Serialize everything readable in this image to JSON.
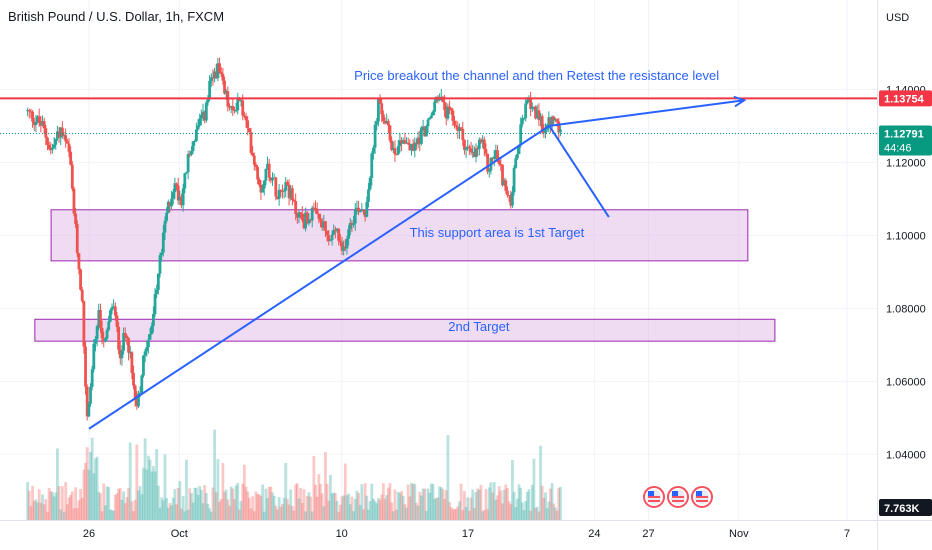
{
  "chart_data": {
    "type": "candlestick",
    "title": "British Pound / U.S. Dollar, 1h, FXCM",
    "currency_label": "USD",
    "y_ticks": [
      {
        "value": 1.04,
        "label": "1.04000"
      },
      {
        "value": 1.06,
        "label": "1.06000"
      },
      {
        "value": 1.08,
        "label": "1.08000"
      },
      {
        "value": 1.1,
        "label": "1.10000"
      },
      {
        "value": 1.12,
        "label": "1.12000"
      },
      {
        "value": 1.14,
        "label": "1.14000"
      }
    ],
    "ylim": [
      1.022,
      1.159
    ],
    "x_ticks": [
      {
        "label": "26",
        "day": 0
      },
      {
        "label": "Oct",
        "day": 5
      },
      {
        "label": "10",
        "day": 14
      },
      {
        "label": "17",
        "day": 21
      },
      {
        "label": "24",
        "day": 28
      },
      {
        "label": "27",
        "day": 31
      },
      {
        "label": "Nov",
        "day": 36
      },
      {
        "label": "7",
        "day": 42
      }
    ],
    "price_path": [
      [
        -3.4,
        1.134
      ],
      [
        -2.5,
        1.13
      ],
      [
        -2.0,
        1.123
      ],
      [
        -1.5,
        1.129
      ],
      [
        -1.0,
        1.122
      ],
      [
        -0.6,
        1.098
      ],
      [
        -0.3,
        1.083
      ],
      [
        0.0,
        1.048
      ],
      [
        0.3,
        1.066
      ],
      [
        0.6,
        1.078
      ],
      [
        1.0,
        1.07
      ],
      [
        1.4,
        1.082
      ],
      [
        1.8,
        1.068
      ],
      [
        2.2,
        1.074
      ],
      [
        2.5,
        1.06
      ],
      [
        2.8,
        1.054
      ],
      [
        3.2,
        1.07
      ],
      [
        3.6,
        1.076
      ],
      [
        4.0,
        1.092
      ],
      [
        4.4,
        1.106
      ],
      [
        4.8,
        1.114
      ],
      [
        5.2,
        1.11
      ],
      [
        5.6,
        1.121
      ],
      [
        6.0,
        1.128
      ],
      [
        6.5,
        1.133
      ],
      [
        6.8,
        1.141
      ],
      [
        7.2,
        1.146
      ],
      [
        7.6,
        1.139
      ],
      [
        8.0,
        1.133
      ],
      [
        8.4,
        1.138
      ],
      [
        8.8,
        1.13
      ],
      [
        9.2,
        1.122
      ],
      [
        9.6,
        1.113
      ],
      [
        10.0,
        1.119
      ],
      [
        10.5,
        1.112
      ],
      [
        11.0,
        1.115
      ],
      [
        11.5,
        1.107
      ],
      [
        12.0,
        1.104
      ],
      [
        12.5,
        1.106
      ],
      [
        13.0,
        1.103
      ],
      [
        13.4,
        1.098
      ],
      [
        13.8,
        1.102
      ],
      [
        14.1,
        1.094
      ],
      [
        14.5,
        1.103
      ],
      [
        15.0,
        1.108
      ],
      [
        15.4,
        1.107
      ],
      [
        15.8,
        1.122
      ],
      [
        16.1,
        1.136
      ],
      [
        16.5,
        1.131
      ],
      [
        17.0,
        1.123
      ],
      [
        17.5,
        1.127
      ],
      [
        18.0,
        1.123
      ],
      [
        18.5,
        1.128
      ],
      [
        19.0,
        1.131
      ],
      [
        19.4,
        1.139
      ],
      [
        19.8,
        1.134
      ],
      [
        20.2,
        1.132
      ],
      [
        20.6,
        1.129
      ],
      [
        21.0,
        1.124
      ],
      [
        21.4,
        1.121
      ],
      [
        21.8,
        1.126
      ],
      [
        22.2,
        1.118
      ],
      [
        22.6,
        1.123
      ],
      [
        23.0,
        1.116
      ],
      [
        23.4,
        1.108
      ],
      [
        23.8,
        1.122
      ],
      [
        24.2,
        1.134
      ],
      [
        24.6,
        1.137
      ],
      [
        25.0,
        1.131
      ],
      [
        25.4,
        1.129
      ],
      [
        25.8,
        1.132
      ],
      [
        26.2,
        1.128
      ]
    ],
    "horizontal_lines": [
      {
        "value": 1.13754,
        "label": "1.13754",
        "color": "#f23645",
        "style": "solid"
      },
      {
        "value": 1.12791,
        "label": "1.12791",
        "color": "#089981",
        "style": "dotted",
        "countdown": "44:46"
      }
    ],
    "zones": [
      {
        "label": "This support area is 1st Target",
        "y_low": 1.093,
        "y_high": 1.107,
        "x_start": -2.1,
        "x_end": 36.5
      },
      {
        "label": "2nd Target",
        "y_low": 1.071,
        "y_high": 1.077,
        "x_start": -3.0,
        "x_end": 38.0
      }
    ],
    "trendline": {
      "from": {
        "day": 0.0,
        "value": 1.047
      },
      "to": {
        "day": 25.5,
        "value": 1.13
      },
      "extend_to": {
        "day": 36.3,
        "value": 1.137
      }
    },
    "arrows": [
      {
        "from": {
          "day": 25.5,
          "value": 1.13
        },
        "to": {
          "day": 28.8,
          "value": 1.105
        }
      }
    ],
    "annotations": [
      {
        "text": "Price breakout the channel and then Retest the resistance level",
        "day": 24.8,
        "value": 1.1426
      },
      {
        "text": "This support area is 1st Target",
        "day": 22.6,
        "value": 1.0995
      },
      {
        "text": "2nd Target",
        "day": 21.6,
        "value": 1.0738
      }
    ],
    "volume": {
      "label": "7.763K"
    },
    "event_icons": 3,
    "colors": {
      "up": "#26a69a",
      "down": "#ef5350",
      "resistance": "#f23645",
      "price_badge": "#089981",
      "volume_badge": "#131722",
      "annotation": "#2962ff",
      "zone_fill": "#e1bee7",
      "zone_stroke": "#9c27b0",
      "event_icon": "#f7525f"
    }
  }
}
